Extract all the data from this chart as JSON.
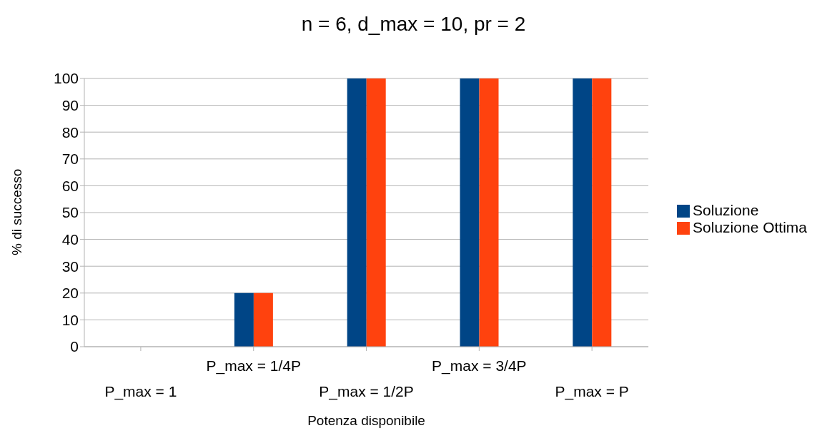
{
  "chart_data": {
    "type": "bar",
    "title": "n = 6, d_max = 10, pr = 2",
    "xlabel": "Potenza disponibile",
    "ylabel": "% di successo",
    "categories": [
      "P_max = 1",
      "P_max = 1/4P",
      "P_max = 1/2P",
      "P_max = 3/4P",
      "P_max = P"
    ],
    "series": [
      {
        "name": "Soluzione",
        "color": "#004586",
        "values": [
          0,
          20,
          100,
          100,
          100
        ]
      },
      {
        "name": "Soluzione Ottima",
        "color": "#ff420e",
        "values": [
          0,
          20,
          100,
          100,
          100
        ]
      }
    ],
    "ylim": [
      0,
      100
    ],
    "yticks": [
      0,
      10,
      20,
      30,
      40,
      50,
      60,
      70,
      80,
      90,
      100
    ],
    "grid": "y",
    "legend": "right"
  }
}
